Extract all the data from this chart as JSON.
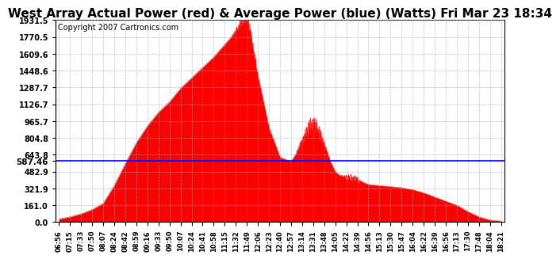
{
  "title": "West Array Actual Power (red) & Average Power (blue) (Watts) Fri Mar 23 18:34",
  "copyright": "Copyright 2007 Cartronics.com",
  "avg_power": 587.46,
  "ymax": 1931.5,
  "yticks": [
    0.0,
    161.0,
    321.9,
    482.9,
    643.8,
    804.8,
    965.7,
    1126.7,
    1287.7,
    1448.6,
    1609.6,
    1770.5,
    1931.5
  ],
  "xtick_labels": [
    "06:56",
    "07:15",
    "07:33",
    "07:50",
    "08:07",
    "08:24",
    "08:42",
    "08:59",
    "09:16",
    "09:33",
    "09:50",
    "10:07",
    "10:24",
    "10:41",
    "10:58",
    "11:15",
    "11:32",
    "11:49",
    "12:06",
    "12:23",
    "12:40",
    "12:57",
    "13:14",
    "13:31",
    "13:48",
    "14:05",
    "14:22",
    "14:39",
    "14:56",
    "15:13",
    "15:30",
    "15:47",
    "16:04",
    "16:22",
    "16:39",
    "16:56",
    "17:13",
    "17:30",
    "17:48",
    "18:04",
    "18:21"
  ],
  "fill_color": "#ff0000",
  "line_color": "#0000ff",
  "avg_label": "587.46",
  "background_color": "#ffffff",
  "grid_color": "#aaaaaa",
  "title_fontsize": 11,
  "copyright_fontsize": 7
}
